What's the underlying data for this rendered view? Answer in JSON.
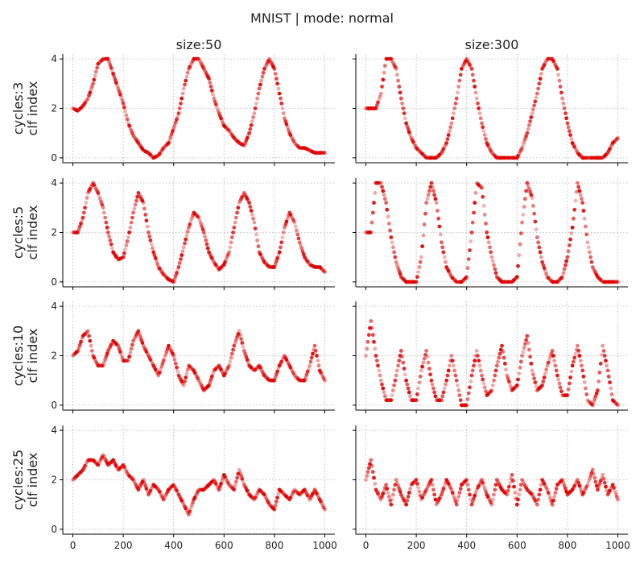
{
  "chart_data": {
    "type": "scatter",
    "suptitle": "MNIST | mode: normal",
    "columns": [
      "size:50",
      "size:300"
    ],
    "rows": [
      {
        "title": "cycles:3",
        "ylabel": "clf index"
      },
      {
        "title": "cycles:5",
        "ylabel": "clf index"
      },
      {
        "title": "cycles:10",
        "ylabel": "clf index"
      },
      {
        "title": "cycles:25",
        "ylabel": "clf index"
      }
    ],
    "xlim": [
      -40,
      1040
    ],
    "ylim": [
      -0.2,
      4.2
    ],
    "xticks": [
      0,
      200,
      400,
      600,
      800,
      1000
    ],
    "yticks": [
      0,
      2,
      4
    ],
    "grid": true,
    "marker_color": "#e00000",
    "panels": [
      {
        "row": 0,
        "col": 0,
        "x": [
          0,
          20,
          40,
          60,
          80,
          100,
          120,
          140,
          160,
          180,
          200,
          220,
          240,
          260,
          280,
          300,
          320,
          340,
          360,
          380,
          400,
          420,
          440,
          460,
          480,
          500,
          520,
          540,
          560,
          580,
          600,
          620,
          640,
          660,
          680,
          700,
          720,
          740,
          760,
          780,
          800,
          820,
          840,
          860,
          880,
          900,
          920,
          940,
          960,
          980,
          1000
        ],
        "y": [
          2.0,
          1.9,
          2.1,
          2.4,
          3.0,
          3.8,
          4.0,
          4.0,
          3.4,
          2.8,
          2.2,
          1.4,
          0.9,
          0.6,
          0.3,
          0.2,
          0.0,
          0.1,
          0.4,
          0.6,
          1.2,
          1.8,
          2.8,
          3.6,
          4.0,
          4.0,
          3.6,
          3.2,
          2.4,
          1.8,
          1.3,
          1.1,
          0.8,
          0.6,
          0.5,
          1.0,
          1.8,
          2.8,
          3.6,
          4.0,
          3.6,
          2.6,
          1.6,
          1.0,
          0.6,
          0.4,
          0.4,
          0.3,
          0.2,
          0.2,
          0.2
        ]
      },
      {
        "row": 0,
        "col": 1,
        "x": [
          0,
          20,
          40,
          60,
          80,
          100,
          120,
          140,
          160,
          180,
          200,
          220,
          240,
          260,
          280,
          300,
          320,
          340,
          360,
          380,
          400,
          420,
          440,
          460,
          480,
          500,
          520,
          540,
          560,
          580,
          600,
          620,
          640,
          660,
          680,
          700,
          720,
          740,
          760,
          780,
          800,
          820,
          840,
          860,
          880,
          900,
          920,
          940,
          960,
          980,
          1000
        ],
        "y": [
          2.0,
          2.0,
          2.0,
          2.6,
          4.0,
          4.0,
          3.6,
          2.4,
          1.4,
          0.8,
          0.4,
          0.2,
          0.0,
          0.0,
          0.0,
          0.2,
          0.6,
          1.4,
          2.4,
          3.6,
          4.0,
          3.6,
          2.4,
          1.4,
          0.6,
          0.2,
          0.0,
          0.0,
          0.0,
          0.0,
          0.0,
          0.4,
          1.0,
          1.8,
          2.6,
          3.6,
          4.0,
          4.0,
          3.6,
          2.4,
          1.4,
          0.6,
          0.2,
          0.0,
          0.0,
          0.0,
          0.0,
          0.0,
          0.2,
          0.6,
          0.8
        ]
      },
      {
        "row": 1,
        "col": 0,
        "x": [
          0,
          20,
          40,
          60,
          80,
          100,
          120,
          140,
          160,
          180,
          200,
          220,
          240,
          260,
          280,
          300,
          320,
          340,
          360,
          380,
          400,
          420,
          440,
          460,
          480,
          500,
          520,
          540,
          560,
          580,
          600,
          620,
          640,
          660,
          680,
          700,
          720,
          740,
          760,
          780,
          800,
          820,
          840,
          860,
          880,
          900,
          920,
          940,
          960,
          980,
          1000
        ],
        "y": [
          2.0,
          2.0,
          2.6,
          3.6,
          4.0,
          3.6,
          3.0,
          2.0,
          1.2,
          0.9,
          1.0,
          1.8,
          2.8,
          3.6,
          3.2,
          2.0,
          1.2,
          0.6,
          0.3,
          0.1,
          0.0,
          0.6,
          1.4,
          2.2,
          2.8,
          2.6,
          2.0,
          1.2,
          0.8,
          0.5,
          0.7,
          1.2,
          2.2,
          3.2,
          3.6,
          3.2,
          2.4,
          1.2,
          0.8,
          0.6,
          0.6,
          1.2,
          2.2,
          2.8,
          2.4,
          1.6,
          1.0,
          0.7,
          0.6,
          0.6,
          0.4
        ]
      },
      {
        "row": 1,
        "col": 1,
        "x": [
          0,
          20,
          40,
          60,
          80,
          100,
          120,
          140,
          160,
          180,
          200,
          220,
          240,
          260,
          280,
          300,
          320,
          340,
          360,
          380,
          400,
          420,
          440,
          460,
          480,
          500,
          520,
          540,
          560,
          580,
          600,
          620,
          640,
          660,
          680,
          700,
          720,
          740,
          760,
          780,
          800,
          820,
          840,
          860,
          880,
          900,
          920,
          940,
          960,
          980,
          1000
        ],
        "y": [
          2.0,
          2.0,
          4.0,
          4.0,
          3.2,
          1.8,
          0.8,
          0.2,
          0.0,
          0.0,
          0.0,
          1.0,
          3.2,
          4.0,
          3.2,
          1.6,
          0.6,
          0.2,
          0.0,
          0.0,
          0.2,
          2.0,
          4.0,
          3.8,
          2.0,
          1.0,
          0.2,
          0.0,
          0.0,
          0.0,
          0.2,
          2.4,
          4.0,
          3.4,
          1.8,
          0.8,
          0.2,
          0.0,
          0.0,
          0.2,
          1.0,
          2.2,
          4.0,
          3.2,
          1.6,
          0.6,
          0.2,
          0.0,
          0.0,
          0.0,
          0.0
        ]
      },
      {
        "row": 2,
        "col": 0,
        "x": [
          0,
          20,
          40,
          60,
          80,
          100,
          120,
          140,
          160,
          180,
          200,
          220,
          240,
          260,
          280,
          300,
          320,
          340,
          360,
          380,
          400,
          420,
          440,
          460,
          480,
          500,
          520,
          540,
          560,
          580,
          600,
          620,
          640,
          660,
          680,
          700,
          720,
          740,
          760,
          780,
          800,
          820,
          840,
          860,
          880,
          900,
          920,
          940,
          960,
          980,
          1000
        ],
        "y": [
          2.0,
          2.2,
          2.8,
          3.0,
          2.0,
          1.6,
          1.6,
          2.2,
          2.6,
          2.4,
          1.8,
          1.8,
          2.6,
          3.0,
          2.4,
          2.0,
          1.6,
          1.2,
          1.8,
          2.4,
          2.0,
          1.2,
          0.8,
          1.6,
          1.4,
          1.0,
          0.6,
          0.8,
          1.4,
          1.6,
          1.2,
          1.6,
          2.4,
          3.0,
          2.2,
          1.6,
          1.4,
          1.6,
          1.2,
          1.0,
          1.0,
          1.6,
          2.0,
          1.6,
          1.2,
          1.0,
          1.0,
          1.6,
          2.4,
          1.4,
          1.0
        ]
      },
      {
        "row": 2,
        "col": 1,
        "x": [
          0,
          20,
          40,
          60,
          80,
          100,
          120,
          140,
          160,
          180,
          200,
          220,
          240,
          260,
          280,
          300,
          320,
          340,
          360,
          380,
          400,
          420,
          440,
          460,
          480,
          500,
          520,
          540,
          560,
          580,
          600,
          620,
          640,
          660,
          680,
          700,
          720,
          740,
          760,
          780,
          800,
          820,
          840,
          860,
          880,
          900,
          920,
          940,
          960,
          980,
          1000
        ],
        "y": [
          2.0,
          3.4,
          2.0,
          1.0,
          0.2,
          0.2,
          1.2,
          2.2,
          1.0,
          0.2,
          0.2,
          1.4,
          2.2,
          1.0,
          0.2,
          0.2,
          1.0,
          2.0,
          1.0,
          0.0,
          0.0,
          1.2,
          2.2,
          1.2,
          0.4,
          0.6,
          1.6,
          2.4,
          1.2,
          0.6,
          0.8,
          2.0,
          2.8,
          1.4,
          0.6,
          0.8,
          1.6,
          2.2,
          1.2,
          0.4,
          0.4,
          1.6,
          2.4,
          1.4,
          0.2,
          0.0,
          0.6,
          2.4,
          1.4,
          0.2,
          0.0
        ]
      },
      {
        "row": 3,
        "col": 0,
        "x": [
          0,
          20,
          40,
          60,
          80,
          100,
          120,
          140,
          160,
          180,
          200,
          220,
          240,
          260,
          280,
          300,
          320,
          340,
          360,
          380,
          400,
          420,
          440,
          460,
          480,
          500,
          520,
          540,
          560,
          580,
          600,
          620,
          640,
          660,
          680,
          700,
          720,
          740,
          760,
          780,
          800,
          820,
          840,
          860,
          880,
          900,
          920,
          940,
          960,
          980,
          1000
        ],
        "y": [
          2.0,
          2.2,
          2.4,
          2.8,
          2.8,
          2.6,
          3.0,
          2.6,
          2.8,
          2.4,
          2.6,
          2.2,
          2.0,
          1.6,
          2.0,
          1.4,
          1.8,
          1.6,
          1.2,
          1.6,
          1.8,
          1.4,
          1.0,
          0.6,
          1.2,
          1.6,
          1.6,
          1.8,
          2.0,
          1.6,
          2.2,
          1.8,
          1.6,
          2.4,
          1.8,
          1.4,
          1.2,
          1.6,
          1.4,
          1.0,
          0.8,
          1.6,
          1.4,
          1.2,
          1.6,
          1.4,
          1.6,
          1.2,
          1.6,
          1.2,
          0.8
        ]
      },
      {
        "row": 3,
        "col": 1,
        "x": [
          0,
          20,
          40,
          60,
          80,
          100,
          120,
          140,
          160,
          180,
          200,
          220,
          240,
          260,
          280,
          300,
          320,
          340,
          360,
          380,
          400,
          420,
          440,
          460,
          480,
          500,
          520,
          540,
          560,
          580,
          600,
          620,
          640,
          660,
          680,
          700,
          720,
          740,
          760,
          780,
          800,
          820,
          840,
          860,
          880,
          900,
          920,
          940,
          960,
          980,
          1000
        ],
        "y": [
          2.0,
          2.8,
          1.6,
          1.2,
          1.8,
          1.0,
          2.0,
          1.4,
          1.0,
          1.8,
          2.0,
          1.2,
          1.6,
          2.0,
          1.0,
          1.4,
          2.0,
          1.6,
          1.0,
          1.8,
          2.0,
          1.0,
          1.6,
          2.0,
          1.4,
          1.0,
          2.0,
          1.6,
          1.4,
          2.2,
          1.0,
          2.0,
          1.6,
          1.4,
          1.0,
          2.0,
          1.6,
          1.0,
          1.8,
          2.0,
          1.4,
          1.6,
          2.0,
          1.4,
          1.8,
          2.4,
          1.6,
          2.2,
          1.4,
          1.8,
          1.2
        ]
      }
    ]
  }
}
